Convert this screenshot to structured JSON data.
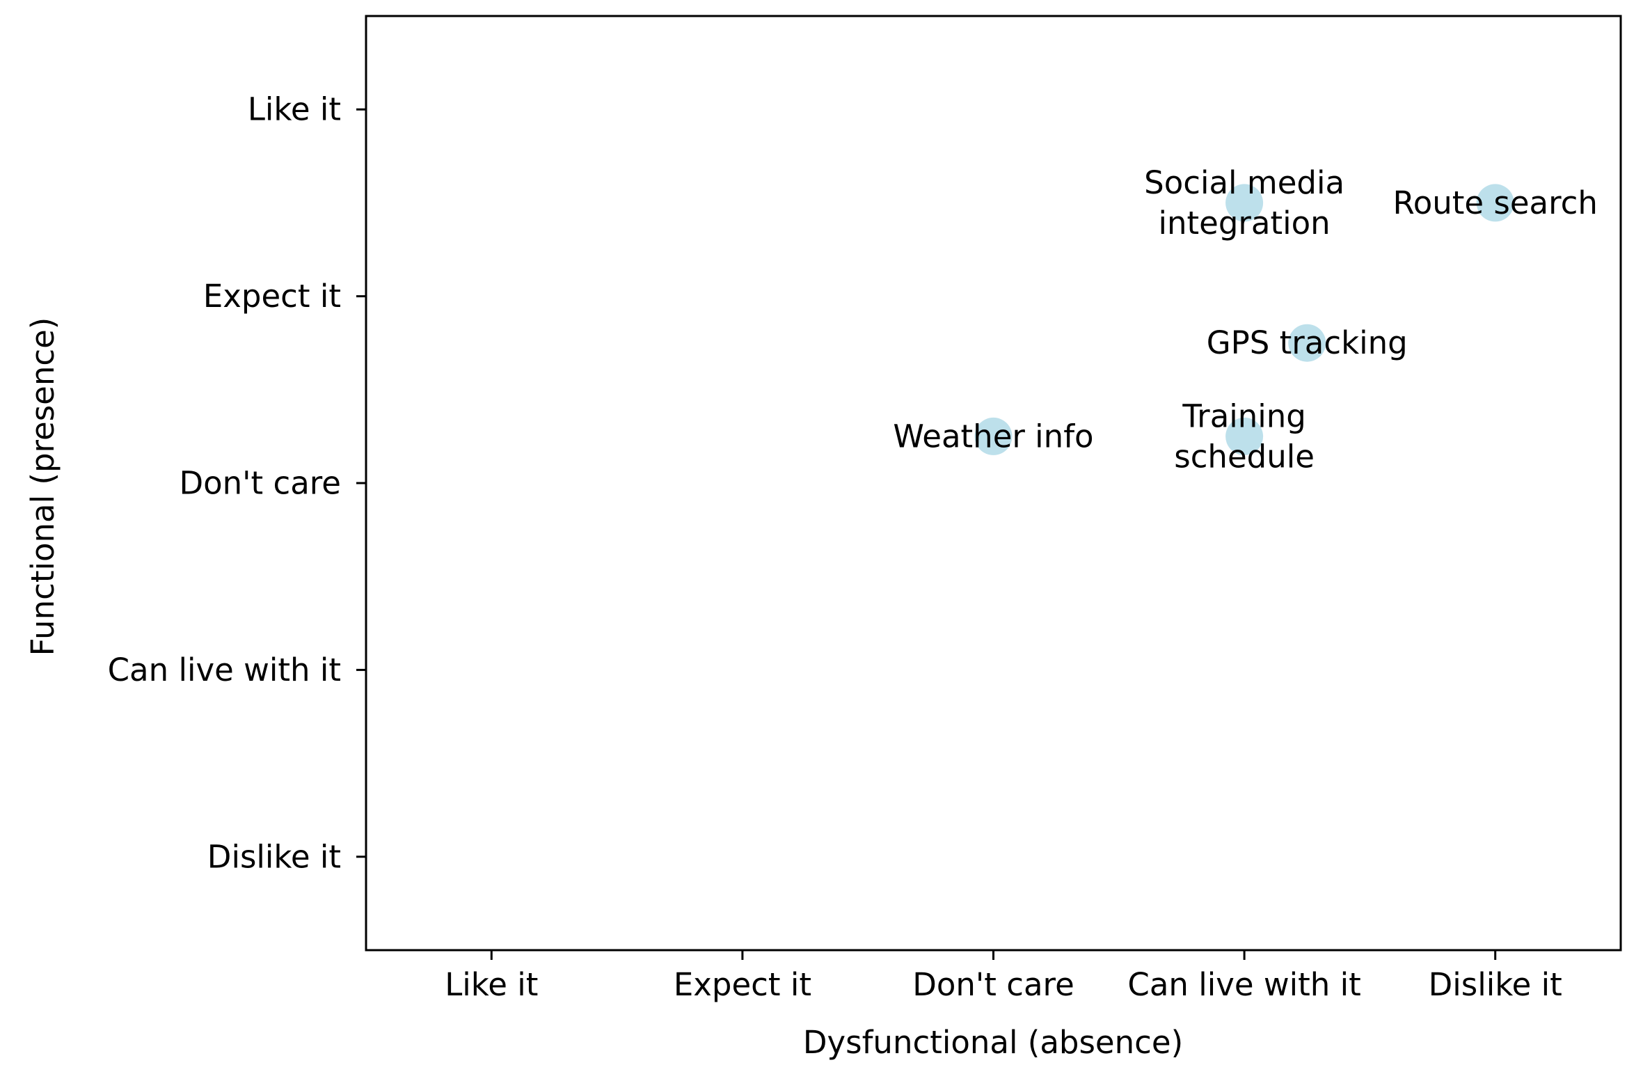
{
  "chart_data": {
    "type": "scatter",
    "title": "",
    "xlabel": "Dysfunctional (absence)",
    "ylabel": "Functional (presence)",
    "x_categories": [
      "Like it",
      "Expect it",
      "Don't care",
      "Can live with it",
      "Dislike it"
    ],
    "y_categories": [
      "Like it",
      "Expect it",
      "Don't care",
      "Can live with it",
      "Dislike it"
    ],
    "x_range": [
      -0.5,
      4.5
    ],
    "y_range": [
      -0.5,
      4.5
    ],
    "grid": false,
    "point_color": "#add8e6",
    "points": [
      {
        "label_lines": [
          "Social media",
          "integration"
        ],
        "x": 3.0,
        "y": 0.5
      },
      {
        "label_lines": [
          "Route search"
        ],
        "x": 4.0,
        "y": 0.5
      },
      {
        "label_lines": [
          "GPS tracking"
        ],
        "x": 3.25,
        "y": 1.25
      },
      {
        "label_lines": [
          "Weather info"
        ],
        "x": 2.0,
        "y": 1.75
      },
      {
        "label_lines": [
          "Training",
          "schedule"
        ],
        "x": 3.0,
        "y": 1.75
      }
    ]
  }
}
